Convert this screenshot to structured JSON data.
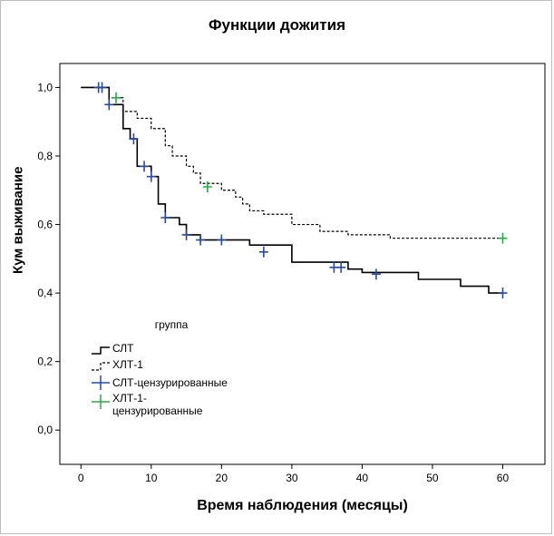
{
  "chart_data": {
    "type": "line",
    "title": "Функции дожития",
    "xlabel": "Время наблюдения (месяцы)",
    "ylabel": "Кум выживание",
    "xlim": [
      -3,
      66
    ],
    "ylim": [
      -0.1,
      1.07
    ],
    "x_ticks": [
      0,
      10,
      20,
      30,
      40,
      50,
      60
    ],
    "y_ticks": [
      0.0,
      0.2,
      0.4,
      0.6,
      0.8,
      1.0
    ],
    "y_tick_labels": [
      "0,0",
      "0,2",
      "0,4",
      "0,6",
      "0,8",
      "1,0"
    ],
    "grid": false,
    "legend": {
      "title": "группа",
      "placement": "bottom-left",
      "entries": [
        "СЛТ",
        "ХЛТ-1",
        "СЛТ-цензурированные",
        "ХЛТ-1-цензурированные"
      ]
    },
    "series": [
      {
        "name": "СЛТ",
        "style": "solid",
        "color": "#000000",
        "steps": [
          [
            0,
            1.0
          ],
          [
            4,
            0.95
          ],
          [
            6,
            0.88
          ],
          [
            7,
            0.85
          ],
          [
            8,
            0.77
          ],
          [
            10,
            0.74
          ],
          [
            11,
            0.66
          ],
          [
            12,
            0.62
          ],
          [
            14,
            0.6
          ],
          [
            15,
            0.57
          ],
          [
            17,
            0.555
          ],
          [
            24,
            0.54
          ],
          [
            30,
            0.49
          ],
          [
            38,
            0.47
          ],
          [
            40,
            0.46
          ],
          [
            48,
            0.44
          ],
          [
            54,
            0.42
          ],
          [
            58,
            0.4
          ],
          [
            60,
            0.4
          ]
        ]
      },
      {
        "name": "ХЛТ-1",
        "style": "dashed",
        "color": "#000000",
        "steps": [
          [
            0,
            1.0
          ],
          [
            4,
            0.97
          ],
          [
            6,
            0.93
          ],
          [
            8,
            0.91
          ],
          [
            10,
            0.88
          ],
          [
            12,
            0.83
          ],
          [
            13,
            0.8
          ],
          [
            15,
            0.77
          ],
          [
            16,
            0.75
          ],
          [
            17,
            0.72
          ],
          [
            20,
            0.7
          ],
          [
            22,
            0.68
          ],
          [
            23,
            0.66
          ],
          [
            24,
            0.64
          ],
          [
            26,
            0.63
          ],
          [
            30,
            0.6
          ],
          [
            34,
            0.58
          ],
          [
            38,
            0.57
          ],
          [
            44,
            0.56
          ],
          [
            60,
            0.56
          ]
        ]
      },
      {
        "name": "СЛТ-цензурированные",
        "marker": "+",
        "color": "#2b4aa0",
        "points": [
          [
            2.5,
            1.0
          ],
          [
            3,
            1.0
          ],
          [
            4,
            0.95
          ],
          [
            7.5,
            0.85
          ],
          [
            9,
            0.77
          ],
          [
            10,
            0.74
          ],
          [
            12,
            0.62
          ],
          [
            15,
            0.57
          ],
          [
            17,
            0.555
          ],
          [
            20,
            0.555
          ],
          [
            26,
            0.52
          ],
          [
            36,
            0.475
          ],
          [
            37,
            0.475
          ],
          [
            42,
            0.455
          ],
          [
            60,
            0.4
          ]
        ]
      },
      {
        "name": "ХЛТ-1-цензурированные",
        "marker": "+",
        "color": "#2aa84a",
        "points": [
          [
            5,
            0.97
          ],
          [
            18,
            0.71
          ],
          [
            60,
            0.56
          ]
        ]
      }
    ]
  }
}
